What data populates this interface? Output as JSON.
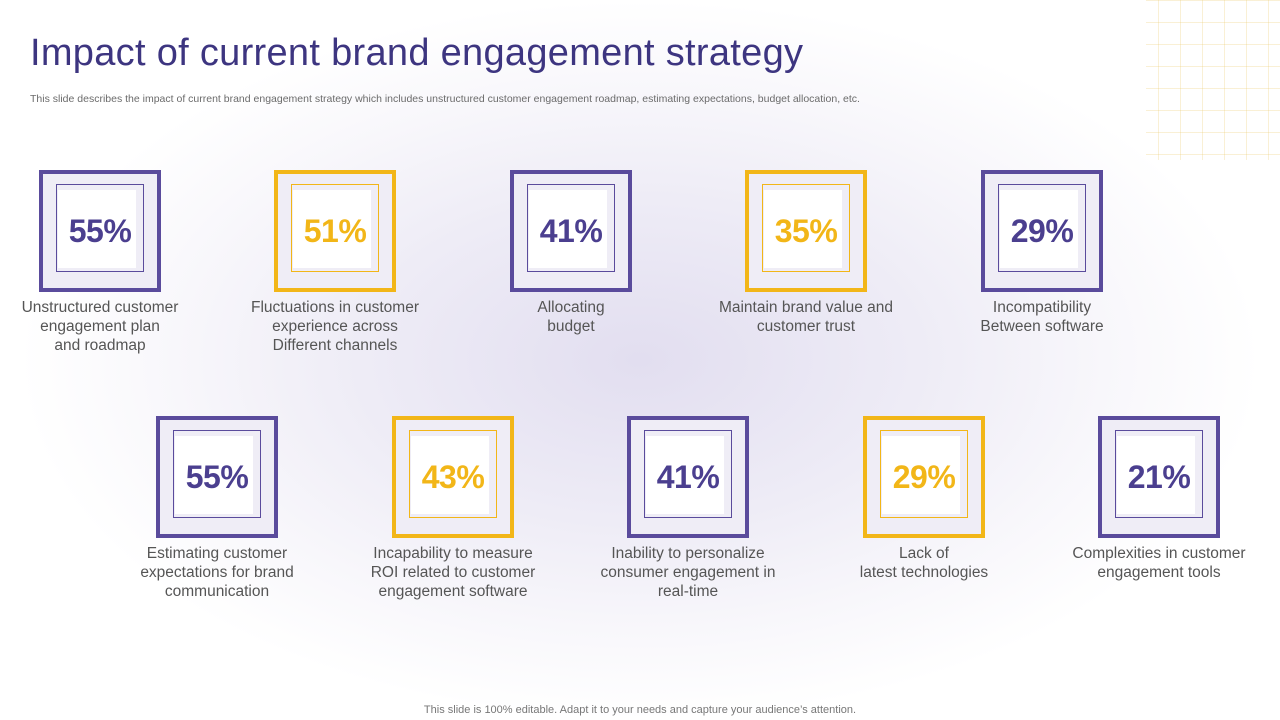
{
  "slide": {
    "title": "Impact of current brand engagement strategy",
    "subtitle": "This slide describes the impact of current brand engagement strategy which includes unstructured customer engagement roadmap, estimating expectations, budget allocation, etc.",
    "footer": "This slide is 100% editable. Adapt it to your needs and capture your audience’s attention."
  },
  "colors": {
    "purple": "#5a4b9c",
    "yellow": "#f2b618",
    "title": "#3d3580"
  },
  "row1": [
    {
      "value": "55%",
      "label": "Unstructured  customer\nengagement plan\nand roadmap",
      "color": "purple"
    },
    {
      "value": "51%",
      "label": "Fluctuations in customer\nexperience across\nDifferent channels",
      "color": "yellow"
    },
    {
      "value": "41%",
      "label": "Allocating\nbudget",
      "color": "purple"
    },
    {
      "value": "35%",
      "label": "Maintain brand value and\ncustomer trust",
      "color": "yellow"
    },
    {
      "value": "29%",
      "label": "Incompatibility\nBetween software",
      "color": "purple"
    }
  ],
  "row2": [
    {
      "value": "55%",
      "label": "Estimating customer\nexpectations for brand\ncommunication",
      "color": "purple"
    },
    {
      "value": "43%",
      "label": "Incapability to measure\nROI related to customer\nengagement software",
      "color": "yellow"
    },
    {
      "value": "41%",
      "label": "Inability to personalize\nconsumer engagement in\nreal-time",
      "color": "purple"
    },
    {
      "value": "29%",
      "label": "Lack of\nlatest technologies",
      "color": "yellow"
    },
    {
      "value": "21%",
      "label": "Complexities in customer\nengagement tools",
      "color": "purple"
    }
  ]
}
